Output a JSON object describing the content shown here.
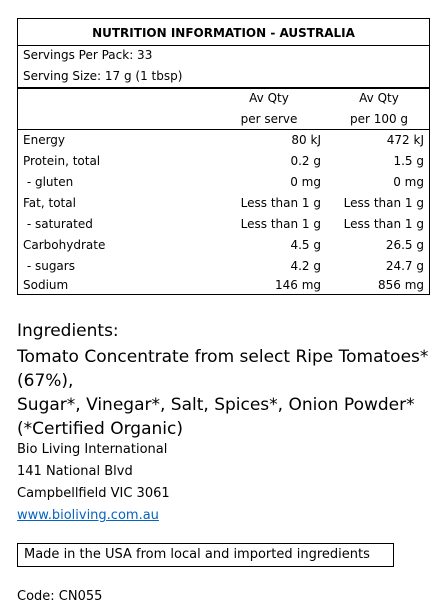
{
  "panel": {
    "title": "NUTRITION INFORMATION - AUSTRALIA",
    "servings_per_pack": "Servings Per Pack: 33",
    "serving_size": "Serving Size: 17 g (1 tbsp)",
    "col_serve_line1": "Av Qty",
    "col_serve_line2": "per serve",
    "col_100_line1": "Av Qty",
    "col_100_line2": "per 100 g",
    "rows": [
      {
        "label": "Energy",
        "per_serve": "80 kJ",
        "per_100": "472 kJ"
      },
      {
        "label": "Protein, total",
        "per_serve": "0.2 g",
        "per_100": "1.5 g"
      },
      {
        "label": " - gluten",
        "per_serve": "0 mg",
        "per_100": "0 mg"
      },
      {
        "label": "Fat, total",
        "per_serve": "Less than 1 g",
        "per_100": "Less than 1 g"
      },
      {
        "label": " - saturated",
        "per_serve": "Less than 1 g",
        "per_100": "Less than 1 g"
      },
      {
        "label": "Carbohydrate",
        "per_serve": "4.5 g",
        "per_100": "26.5 g"
      },
      {
        "label": " - sugars",
        "per_serve": "4.2 g",
        "per_100": "24.7 g"
      },
      {
        "label": "Sodium",
        "per_serve": "146 mg",
        "per_100": "856 mg"
      }
    ]
  },
  "ingredients": {
    "heading": "Ingredients:",
    "line1": "Tomato Concentrate from select Ripe Tomatoes*(67%),",
    "line2": "Sugar*, Vinegar*, Salt, Spices*, Onion Powder*",
    "line3": "(*Certified Organic)"
  },
  "company": {
    "name": "Bio Living International",
    "street": "141 National Blvd",
    "city": "Campbellfield VIC 3061",
    "website": "www.bioliving.com.au"
  },
  "origin_statement": "Made in the USA from local and imported ingredients",
  "code": "Code: CN055",
  "colors": {
    "link": "#0563c1",
    "border": "#000000",
    "text": "#000000"
  }
}
